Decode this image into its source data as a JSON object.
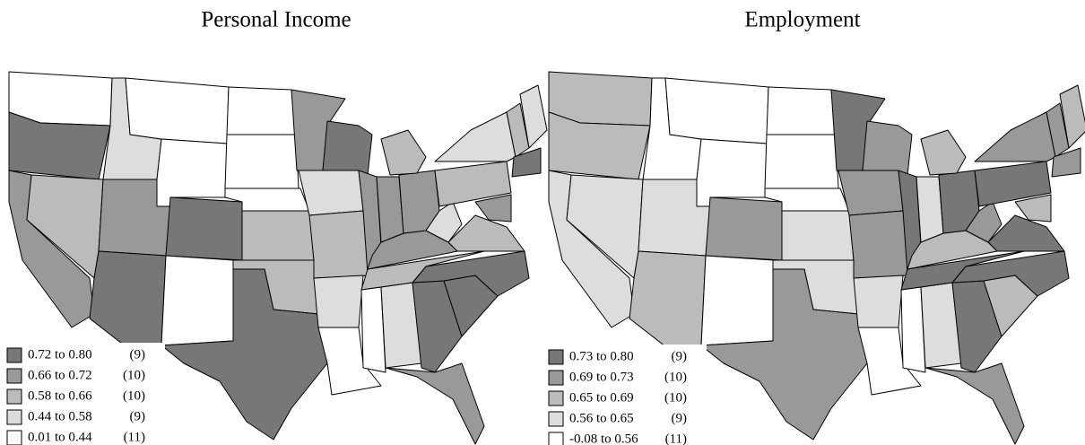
{
  "maps": [
    {
      "title": "Personal Income",
      "legend": [
        {
          "label": "0.72 to 0.80",
          "count": "(9)"
        },
        {
          "label": "0.66 to 0.72",
          "count": "(10)"
        },
        {
          "label": "0.58 to 0.66",
          "count": "(10)"
        },
        {
          "label": "0.44 to 0.58",
          "count": "(9)"
        },
        {
          "label": "0.01 to 0.44",
          "count": "(11)"
        }
      ]
    },
    {
      "title": "Employment",
      "legend": [
        {
          "label": "0.73 to 0.80",
          "count": "(9)"
        },
        {
          "label": "0.69 to 0.73",
          "count": "(10)"
        },
        {
          "label": "0.65 to 0.69",
          "count": "(10)"
        },
        {
          "label": "0.56 to 0.65",
          "count": "(9)"
        },
        {
          "label": "-0.08 to 0.56",
          "count": "(11)"
        }
      ]
    }
  ]
}
